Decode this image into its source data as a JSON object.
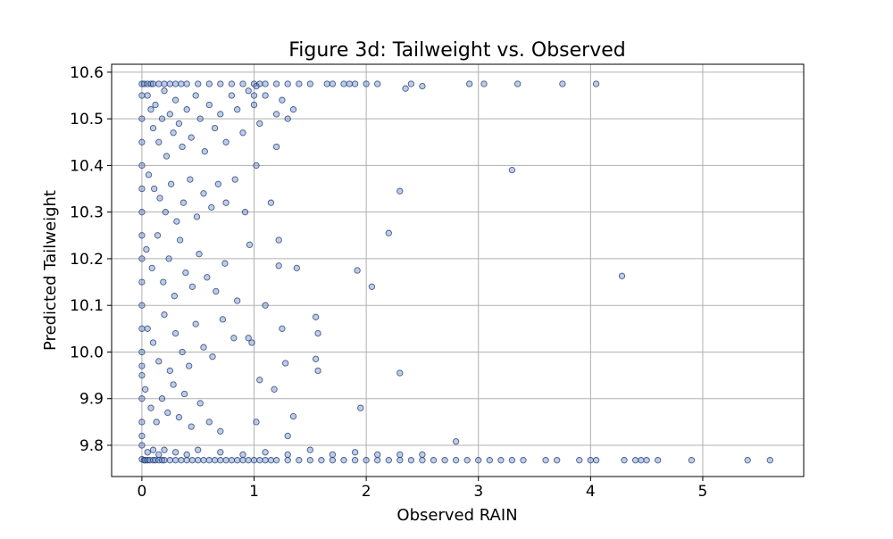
{
  "chart_data": {
    "type": "scatter",
    "title": "Figure 3d: Tailweight vs. Observed",
    "xlabel": "Observed RAIN",
    "ylabel": "Predicted Tailweight",
    "xlim": [
      -0.27,
      5.9
    ],
    "ylim": [
      9.733,
      10.617
    ],
    "xticks": [
      0,
      1,
      2,
      3,
      4,
      5
    ],
    "yticks": [
      9.8,
      9.9,
      10.0,
      10.1,
      10.2,
      10.3,
      10.4,
      10.5,
      10.6
    ],
    "xtick_labels": [
      "0",
      "1",
      "2",
      "3",
      "4",
      "5"
    ],
    "ytick_labels": [
      "9.8",
      "9.9",
      "10.0",
      "10.1",
      "10.2",
      "10.3",
      "10.4",
      "10.5",
      "10.6"
    ],
    "grid": true,
    "marker_fill": "#5b7fc6",
    "marker_edge": "#1f3a6e",
    "series": [
      {
        "name": "points",
        "x": [
          0,
          0,
          0,
          0,
          0,
          0,
          0,
          0,
          0,
          0,
          0,
          0,
          0,
          0,
          0,
          0,
          0,
          0,
          0,
          0,
          0.02,
          0.03,
          0.05,
          0.07,
          0.1,
          0.12,
          0.15,
          0.18,
          0.2,
          0.25,
          0.3,
          0.35,
          0.4,
          0.45,
          0.5,
          0.55,
          0.6,
          0.65,
          0.7,
          0.75,
          0.8,
          0.85,
          0.9,
          0.95,
          1.0,
          1.05,
          1.1,
          1.15,
          1.2,
          1.3,
          1.4,
          1.5,
          1.6,
          1.7,
          1.8,
          1.9,
          2.0,
          2.1,
          2.2,
          2.3,
          2.4,
          2.5,
          2.6,
          2.7,
          2.8,
          2.9,
          3.0,
          3.1,
          3.2,
          3.3,
          3.4,
          3.6,
          3.7,
          3.9,
          4.0,
          4.05,
          4.3,
          4.4,
          4.45,
          4.5,
          4.6,
          4.9,
          5.4,
          5.6,
          0.02,
          0.05,
          0.08,
          0.1,
          0.15,
          0.2,
          0.25,
          0.3,
          0.35,
          0.4,
          0.5,
          0.6,
          0.7,
          0.8,
          0.9,
          1.0,
          1.05,
          1.1,
          1.2,
          1.3,
          1.4,
          1.5,
          1.65,
          1.7,
          1.8,
          1.85,
          1.9,
          2.0,
          2.1,
          2.35,
          2.4,
          2.5,
          2.92,
          3.05,
          3.35,
          3.75,
          4.05,
          0.05,
          0.1,
          0.15,
          0.2,
          0.3,
          0.4,
          0.5,
          0.7,
          0.9,
          1.1,
          1.3,
          1.5,
          1.7,
          1.9,
          2.1,
          2.3,
          2.5,
          2.8,
          0.05,
          0.08,
          0.1,
          0.12,
          0.15,
          0.18,
          0.2,
          0.22,
          0.25,
          0.28,
          0.3,
          0.33,
          0.36,
          0.4,
          0.44,
          0.48,
          0.52,
          0.56,
          0.6,
          0.65,
          0.7,
          0.75,
          0.8,
          0.85,
          0.9,
          0.95,
          1.0,
          1.05,
          1.1,
          1.2,
          1.25,
          1.3,
          1.35,
          0.06,
          0.11,
          0.16,
          0.21,
          0.26,
          0.31,
          0.37,
          0.43,
          0.49,
          0.55,
          0.62,
          0.68,
          0.75,
          0.83,
          0.92,
          1.02,
          0.04,
          0.09,
          0.14,
          0.19,
          0.24,
          0.29,
          0.34,
          0.39,
          0.45,
          0.51,
          0.58,
          0.66,
          0.74,
          0.85,
          0.96,
          0.05,
          0.1,
          0.15,
          0.2,
          0.25,
          0.3,
          0.36,
          0.42,
          0.48,
          0.55,
          0.63,
          0.72,
          0.82,
          0.03,
          0.08,
          0.13,
          0.18,
          0.23,
          0.28,
          0.33,
          0.38,
          0.44,
          0.52,
          0.6,
          0.7,
          3.3,
          2.3,
          2.2,
          1.92,
          2.05,
          4.28,
          1.55,
          1.57,
          1.55,
          1.57,
          2.3,
          1.95,
          1.35,
          1.28,
          1.22,
          1.22,
          1.02,
          1.0,
          1.1,
          1.18,
          1.05,
          1.02,
          0.98,
          0.95,
          1.25,
          1.2,
          1.15,
          1.38,
          1.3
        ],
        "y": [
          9.77,
          9.8,
          9.85,
          9.9,
          9.95,
          10.0,
          10.05,
          10.1,
          10.15,
          10.2,
          10.25,
          10.3,
          10.35,
          10.4,
          10.45,
          10.5,
          10.55,
          10.575,
          9.82,
          9.97,
          9.768,
          9.768,
          9.768,
          9.768,
          9.768,
          9.768,
          9.768,
          9.768,
          9.768,
          9.768,
          9.768,
          9.768,
          9.768,
          9.768,
          9.768,
          9.768,
          9.768,
          9.768,
          9.768,
          9.768,
          9.768,
          9.768,
          9.768,
          9.768,
          9.768,
          9.768,
          9.768,
          9.768,
          9.768,
          9.768,
          9.768,
          9.768,
          9.768,
          9.768,
          9.768,
          9.768,
          9.768,
          9.768,
          9.768,
          9.768,
          9.768,
          9.768,
          9.768,
          9.768,
          9.768,
          9.768,
          9.768,
          9.768,
          9.768,
          9.768,
          9.768,
          9.768,
          9.768,
          9.768,
          9.768,
          9.768,
          9.768,
          9.768,
          9.768,
          9.768,
          9.768,
          9.768,
          9.768,
          9.768,
          10.575,
          10.575,
          10.575,
          10.575,
          10.575,
          10.575,
          10.575,
          10.575,
          10.575,
          10.575,
          10.575,
          10.575,
          10.575,
          10.575,
          10.575,
          10.575,
          10.575,
          10.575,
          10.575,
          10.575,
          10.575,
          10.575,
          10.575,
          10.575,
          10.575,
          10.575,
          10.575,
          10.575,
          10.575,
          10.565,
          10.575,
          10.57,
          10.575,
          10.575,
          10.575,
          10.575,
          10.575,
          9.785,
          9.79,
          9.78,
          9.79,
          9.785,
          9.78,
          9.79,
          9.785,
          9.78,
          9.785,
          9.78,
          9.79,
          9.78,
          9.785,
          9.78,
          9.78,
          9.78,
          9.808,
          10.55,
          10.52,
          10.48,
          10.53,
          10.45,
          10.5,
          10.56,
          10.42,
          10.51,
          10.47,
          10.54,
          10.49,
          10.44,
          10.52,
          10.46,
          10.55,
          10.5,
          10.43,
          10.53,
          10.48,
          10.51,
          10.45,
          10.55,
          10.52,
          10.47,
          10.56,
          10.53,
          10.49,
          10.55,
          10.51,
          10.54,
          10.5,
          10.52,
          10.38,
          10.35,
          10.33,
          10.3,
          10.36,
          10.28,
          10.32,
          10.37,
          10.29,
          10.34,
          10.31,
          10.36,
          10.32,
          10.37,
          10.3,
          10.4,
          10.22,
          10.18,
          10.25,
          10.15,
          10.2,
          10.12,
          10.24,
          10.17,
          10.14,
          10.21,
          10.16,
          10.13,
          10.19,
          10.11,
          10.23,
          10.05,
          10.02,
          9.98,
          10.08,
          9.96,
          10.04,
          10.0,
          9.97,
          10.06,
          10.01,
          9.99,
          10.07,
          10.03,
          9.92,
          9.88,
          9.85,
          9.9,
          9.87,
          9.93,
          9.86,
          9.91,
          9.84,
          9.89,
          9.85,
          9.83,
          10.39,
          10.345,
          10.255,
          10.175,
          10.14,
          10.163,
          10.075,
          10.04,
          9.985,
          9.96,
          9.955,
          9.88,
          9.862,
          9.976,
          10.185,
          10.24,
          10.57,
          10.55,
          10.1,
          9.92,
          9.94,
          9.85,
          10.02,
          10.03,
          10.05,
          10.44,
          10.32,
          10.18,
          9.82
        ]
      }
    ]
  }
}
